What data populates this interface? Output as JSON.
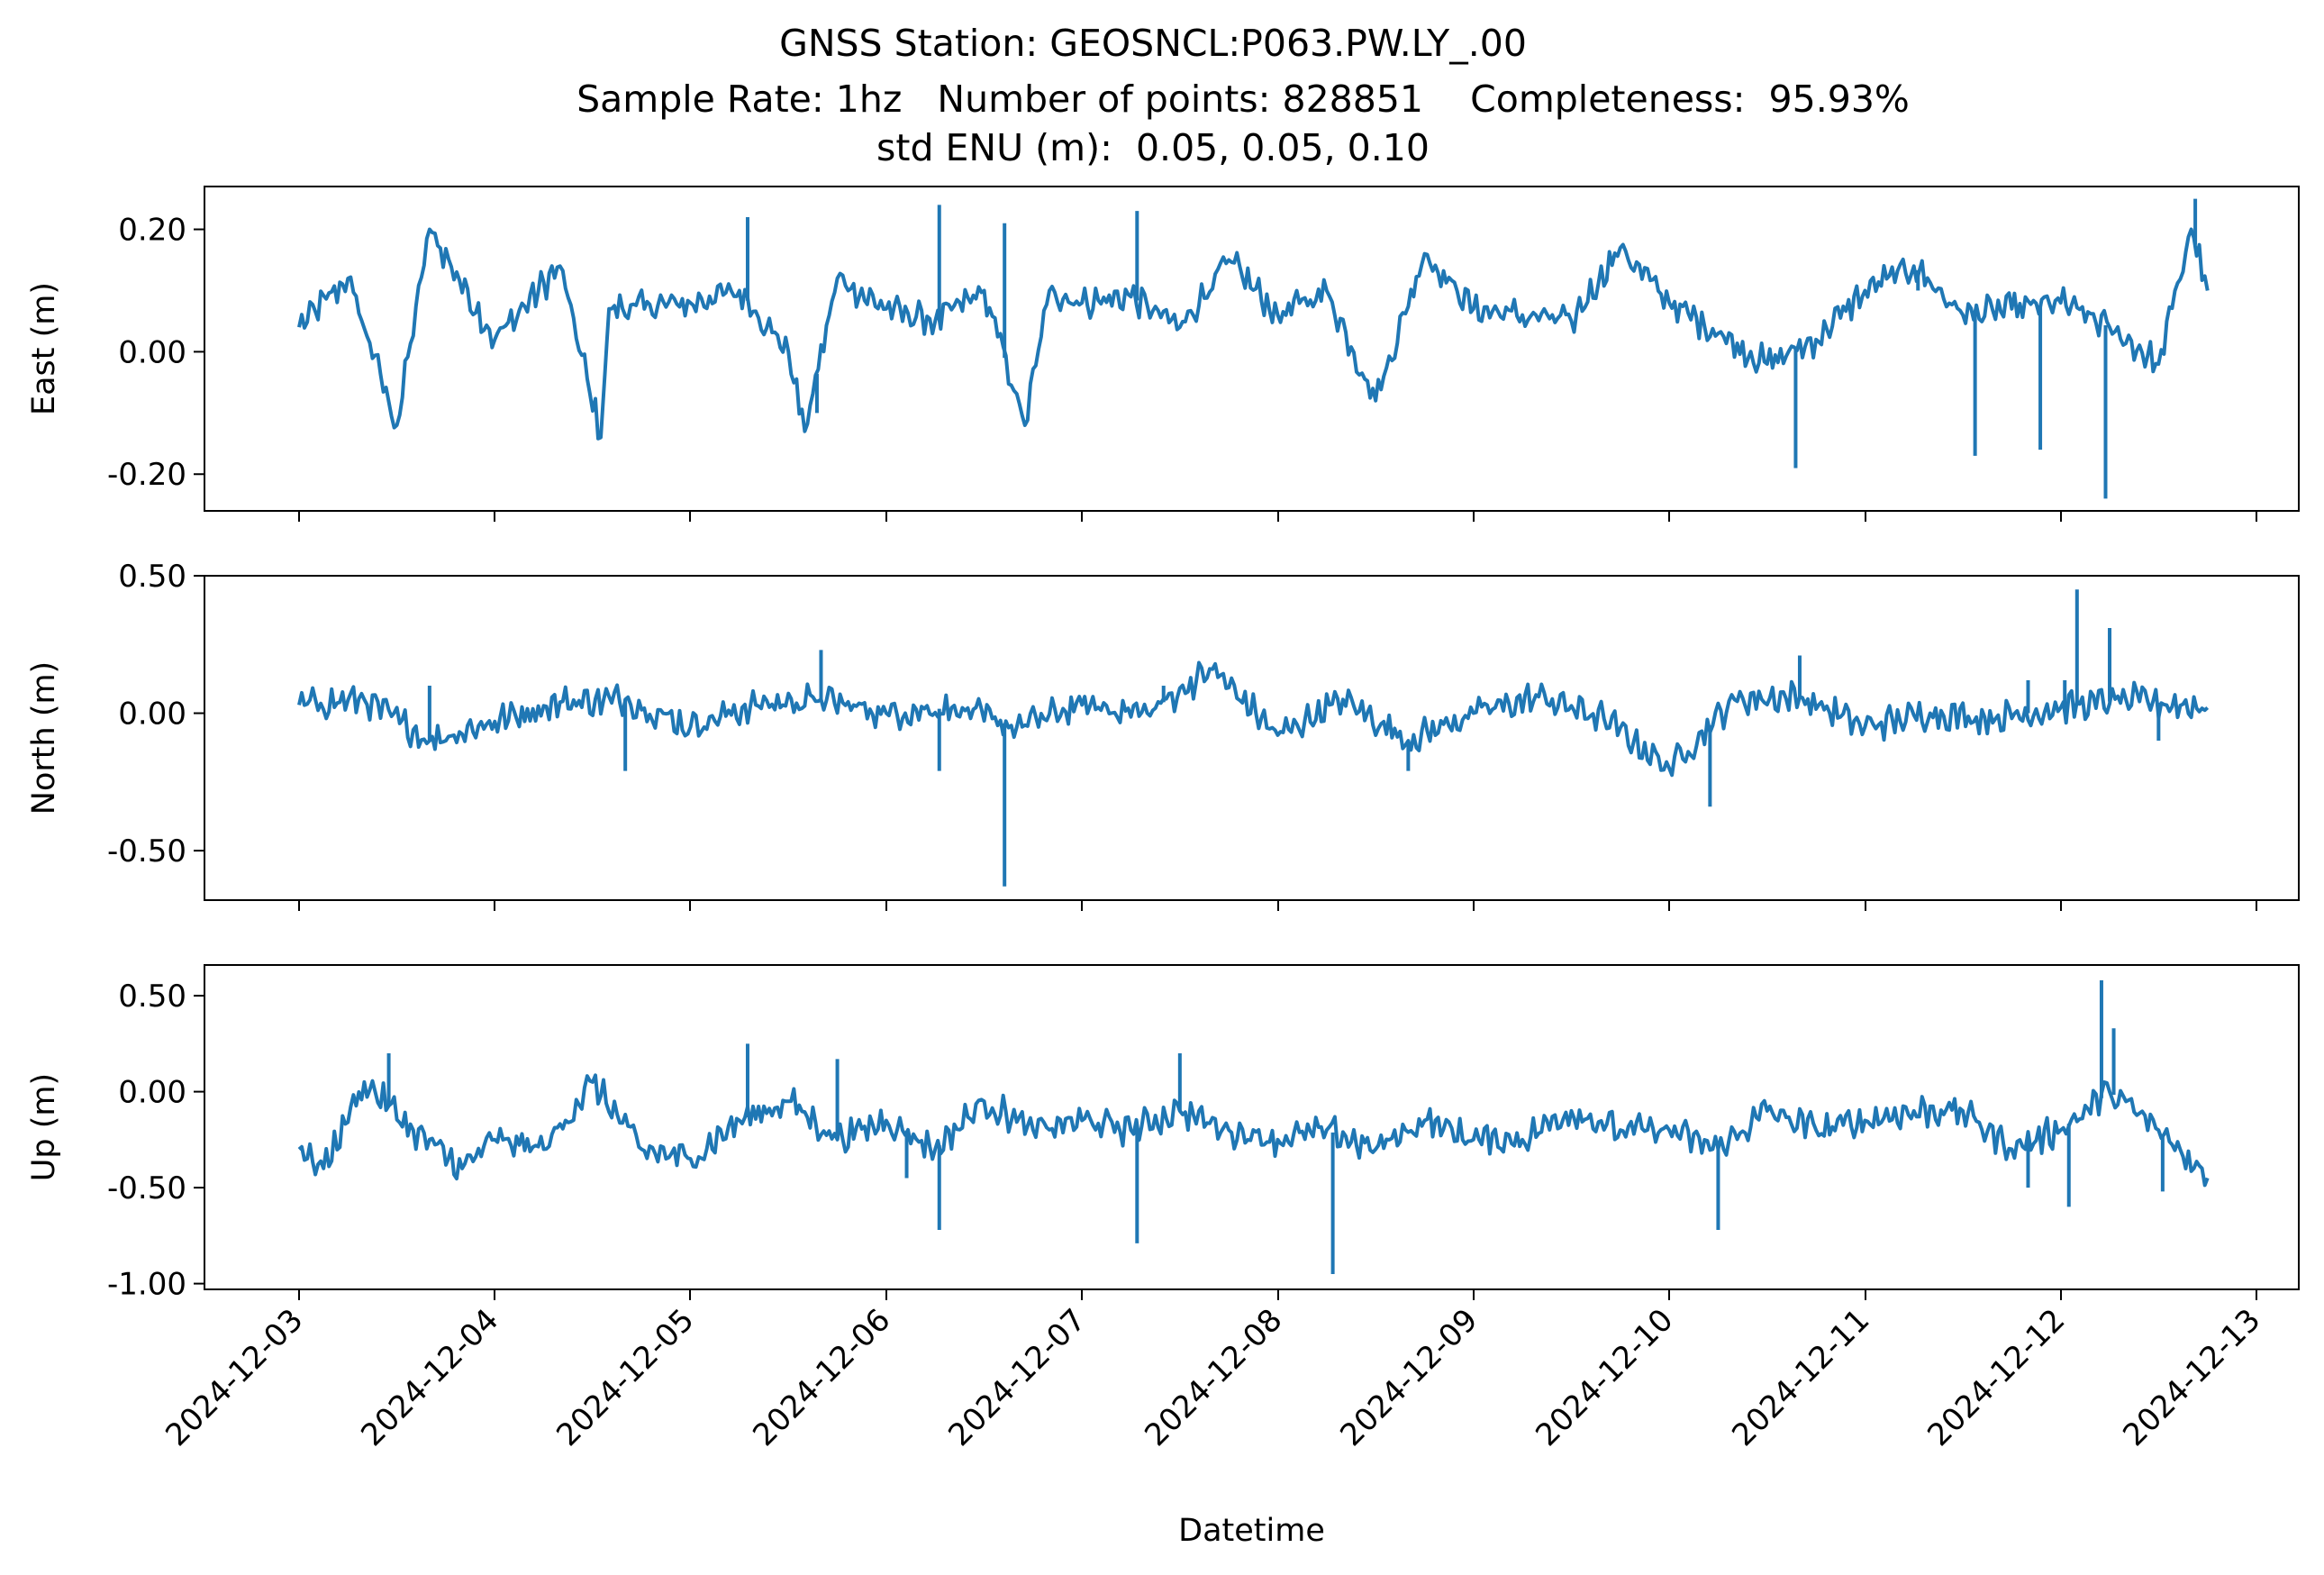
{
  "title": {
    "line1": "GNSS Station: GEOSNCL:P063.PW.LY_.00",
    "line2": "Sample Rate: 1hz   Number of points: 828851    Completeness:  95.93%",
    "line3": "std ENU (m):  0.05, 0.05, 0.10"
  },
  "chart_data": [
    {
      "type": "line",
      "ylabel": "East (m)",
      "xlabel": "",
      "ylim": [
        -0.26,
        0.27
      ],
      "yticks": [
        0.2,
        0.0,
        -0.2
      ],
      "ytick_labels": [
        "0.20",
        "0.00",
        "-0.20"
      ],
      "color": "#1f77b4",
      "series": [
        {
          "x": [
            "2024-12-03 00:00",
            "2024-12-03 06:00",
            "2024-12-03 12:00",
            "2024-12-03 16:00",
            "2024-12-04 00:00",
            "2024-12-04 08:00",
            "2024-12-04 13:00",
            "2024-12-04 14:00",
            "2024-12-05 00:00",
            "2024-12-05 06:00",
            "2024-12-05 12:00",
            "2024-12-05 14:00",
            "2024-12-05 18:00",
            "2024-12-06 00:00",
            "2024-12-06 06:00",
            "2024-12-06 12:00",
            "2024-12-06 17:00",
            "2024-12-06 20:00",
            "2024-12-07 00:00",
            "2024-12-07 06:00",
            "2024-12-07 12:00",
            "2024-12-07 18:00",
            "2024-12-08 00:00",
            "2024-12-08 06:00",
            "2024-12-08 12:00",
            "2024-12-08 18:00",
            "2024-12-09 00:00",
            "2024-12-09 06:00",
            "2024-12-09 12:00",
            "2024-12-09 18:00",
            "2024-12-10 00:00",
            "2024-12-10 06:00",
            "2024-12-10 12:00",
            "2024-12-10 18:00",
            "2024-12-11 00:00",
            "2024-12-11 06:00",
            "2024-12-11 12:00",
            "2024-12-11 18:00",
            "2024-12-12 00:00",
            "2024-12-12 06:00",
            "2024-12-12 12:00",
            "2024-12-12 16:00",
            "2024-12-12 18:00"
          ],
          "values": [
            0.04,
            0.12,
            -0.12,
            0.2,
            0.02,
            0.14,
            -0.14,
            0.07,
            0.08,
            0.1,
            0.0,
            -0.13,
            0.12,
            0.07,
            0.05,
            0.1,
            -0.12,
            0.1,
            0.08,
            0.09,
            0.04,
            0.15,
            0.06,
            0.1,
            -0.08,
            0.16,
            0.07,
            0.06,
            0.05,
            0.17,
            0.08,
            0.03,
            -0.02,
            0.02,
            0.1,
            0.14,
            0.06,
            0.07,
            0.08,
            0.04,
            -0.02,
            0.2,
            0.1
          ]
        }
      ],
      "spikes": [
        {
          "x": "2024-12-05 07:00",
          "value": 0.22
        },
        {
          "x": "2024-12-05 15:30",
          "value": -0.1
        },
        {
          "x": "2024-12-06 06:30",
          "value": 0.24
        },
        {
          "x": "2024-12-06 14:30",
          "value": 0.21
        },
        {
          "x": "2024-12-07 06:45",
          "value": 0.23
        },
        {
          "x": "2024-12-10 15:30",
          "value": -0.19
        },
        {
          "x": "2024-12-11 06:30",
          "value": 0.1
        },
        {
          "x": "2024-12-11 13:30",
          "value": -0.17
        },
        {
          "x": "2024-12-11 21:30",
          "value": -0.16
        },
        {
          "x": "2024-12-12 05:30",
          "value": -0.24
        },
        {
          "x": "2024-12-12 16:30",
          "value": 0.25
        }
      ]
    },
    {
      "type": "line",
      "ylabel": "North (m)",
      "xlabel": "",
      "ylim": [
        -0.68,
        0.5
      ],
      "yticks": [
        0.5,
        0.0,
        -0.5
      ],
      "ytick_labels": [
        "0.50",
        "0.00",
        "-0.50"
      ],
      "color": "#1f77b4",
      "series": [
        {
          "x": [
            "2024-12-03 00:00",
            "2024-12-03 08:00",
            "2024-12-03 16:00",
            "2024-12-04 00:00",
            "2024-12-04 08:00",
            "2024-12-04 16:00",
            "2024-12-05 00:00",
            "2024-12-05 08:00",
            "2024-12-05 16:00",
            "2024-12-06 00:00",
            "2024-12-06 08:00",
            "2024-12-06 16:00",
            "2024-12-07 00:00",
            "2024-12-07 08:00",
            "2024-12-07 16:00",
            "2024-12-08 00:00",
            "2024-12-08 08:00",
            "2024-12-08 16:00",
            "2024-12-09 00:00",
            "2024-12-09 08:00",
            "2024-12-09 16:00",
            "2024-12-10 00:00",
            "2024-12-10 08:00",
            "2024-12-10 16:00",
            "2024-12-11 00:00",
            "2024-12-11 08:00",
            "2024-12-11 16:00",
            "2024-12-12 00:00",
            "2024-12-12 08:00",
            "2024-12-12 18:00"
          ],
          "values": [
            0.03,
            0.05,
            -0.1,
            -0.03,
            0.04,
            0.05,
            -0.05,
            0.03,
            0.05,
            0.0,
            0.02,
            -0.05,
            0.03,
            0.0,
            0.16,
            -0.08,
            0.05,
            -0.1,
            0.0,
            0.06,
            -0.02,
            -0.2,
            0.05,
            0.06,
            -0.05,
            0.0,
            -0.02,
            0.02,
            0.05,
            0.02
          ]
        }
      ],
      "spikes": [
        {
          "x": "2024-12-03 16:00",
          "value": 0.1
        },
        {
          "x": "2024-12-04 16:00",
          "value": -0.21
        },
        {
          "x": "2024-12-05 16:00",
          "value": 0.23
        },
        {
          "x": "2024-12-06 06:30",
          "value": -0.21
        },
        {
          "x": "2024-12-06 14:30",
          "value": -0.63
        },
        {
          "x": "2024-12-07 10:00",
          "value": 0.1
        },
        {
          "x": "2024-12-08 16:00",
          "value": -0.21
        },
        {
          "x": "2024-12-10 05:00",
          "value": -0.34
        },
        {
          "x": "2024-12-10 16:00",
          "value": 0.21
        },
        {
          "x": "2024-12-11 20:00",
          "value": 0.12
        },
        {
          "x": "2024-12-12 00:30",
          "value": 0.12
        },
        {
          "x": "2024-12-12 02:00",
          "value": 0.45
        },
        {
          "x": "2024-12-12 06:00",
          "value": 0.31
        },
        {
          "x": "2024-12-12 12:00",
          "value": -0.1
        }
      ]
    },
    {
      "type": "line",
      "ylabel": "Up (m)",
      "xlabel": "Datetime",
      "ylim": [
        -1.03,
        0.66
      ],
      "yticks": [
        0.5,
        0.0,
        -0.5,
        -1.0
      ],
      "ytick_labels": [
        "0.50",
        "0.00",
        "-0.50",
        "-1.00"
      ],
      "x_tick_labels": [
        "2024-12-03",
        "2024-12-04",
        "2024-12-05",
        "2024-12-06",
        "2024-12-07",
        "2024-12-08",
        "2024-12-09",
        "2024-12-10",
        "2024-12-11",
        "2024-12-12",
        "2024-12-13"
      ],
      "color": "#1f77b4",
      "series": [
        {
          "x": [
            "2024-12-03 00:00",
            "2024-12-03 03:00",
            "2024-12-03 08:00",
            "2024-12-03 14:00",
            "2024-12-03 20:00",
            "2024-12-04 00:00",
            "2024-12-04 06:00",
            "2024-12-04 12:00",
            "2024-12-04 18:00",
            "2024-12-05 00:00",
            "2024-12-05 06:00",
            "2024-12-05 12:00",
            "2024-12-05 18:00",
            "2024-12-06 00:00",
            "2024-12-06 06:00",
            "2024-12-06 12:00",
            "2024-12-06 18:00",
            "2024-12-07 00:00",
            "2024-12-07 06:00",
            "2024-12-07 12:00",
            "2024-12-07 18:00",
            "2024-12-08 00:00",
            "2024-12-08 06:00",
            "2024-12-08 12:00",
            "2024-12-08 18:00",
            "2024-12-09 00:00",
            "2024-12-09 06:00",
            "2024-12-09 12:00",
            "2024-12-09 18:00",
            "2024-12-10 00:00",
            "2024-12-10 06:00",
            "2024-12-10 12:00",
            "2024-12-10 18:00",
            "2024-12-11 00:00",
            "2024-12-11 06:00",
            "2024-12-11 12:00",
            "2024-12-11 18:00",
            "2024-12-12 00:00",
            "2024-12-12 06:00",
            "2024-12-12 12:00",
            "2024-12-12 18:00"
          ],
          "values": [
            -0.3,
            -0.4,
            0.05,
            -0.2,
            -0.4,
            -0.25,
            -0.3,
            0.05,
            -0.3,
            -0.35,
            -0.15,
            -0.05,
            -0.25,
            -0.15,
            -0.3,
            -0.05,
            -0.2,
            -0.15,
            -0.2,
            -0.1,
            -0.2,
            -0.25,
            -0.2,
            -0.3,
            -0.15,
            -0.25,
            -0.25,
            -0.1,
            -0.2,
            -0.2,
            -0.3,
            -0.1,
            -0.2,
            -0.15,
            -0.1,
            -0.1,
            -0.3,
            -0.2,
            0.0,
            -0.2,
            -0.45
          ]
        }
      ],
      "spikes": [
        {
          "x": "2024-12-03 11:00",
          "value": 0.2
        },
        {
          "x": "2024-12-05 07:00",
          "value": 0.25
        },
        {
          "x": "2024-12-05 18:00",
          "value": 0.17
        },
        {
          "x": "2024-12-06 02:30",
          "value": -0.45
        },
        {
          "x": "2024-12-06 06:30",
          "value": -0.72
        },
        {
          "x": "2024-12-07 06:45",
          "value": -0.79
        },
        {
          "x": "2024-12-07 12:00",
          "value": 0.2
        },
        {
          "x": "2024-12-08 06:45",
          "value": -0.95
        },
        {
          "x": "2024-12-10 06:00",
          "value": -0.72
        },
        {
          "x": "2024-12-11 20:00",
          "value": -0.5
        },
        {
          "x": "2024-12-12 01:00",
          "value": -0.6
        },
        {
          "x": "2024-12-12 05:00",
          "value": 0.58
        },
        {
          "x": "2024-12-12 06:30",
          "value": 0.33
        },
        {
          "x": "2024-12-12 12:30",
          "value": -0.52
        }
      ]
    }
  ]
}
